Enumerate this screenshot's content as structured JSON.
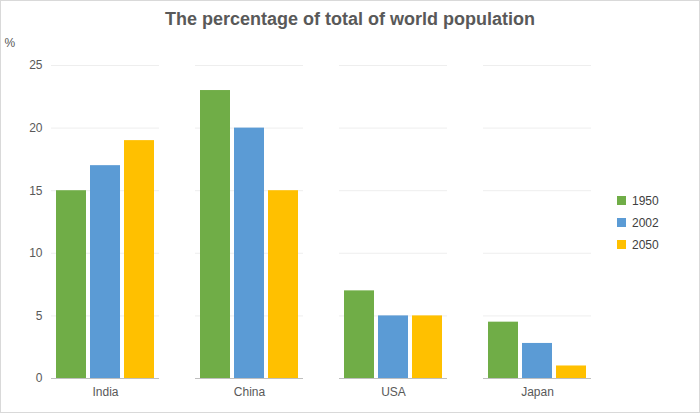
{
  "chart_data": {
    "type": "bar",
    "title": "The percentage of total of world population",
    "y_label": "%",
    "categories": [
      "India",
      "China",
      "USA",
      "Japan"
    ],
    "series": [
      {
        "name": "1950",
        "color": "#70ad47",
        "values": [
          15,
          23,
          7,
          4.5
        ]
      },
      {
        "name": "2002",
        "color": "#5b9bd5",
        "values": [
          17,
          20,
          5,
          2.8
        ]
      },
      {
        "name": "2050",
        "color": "#ffc000",
        "values": [
          19,
          15,
          5,
          1
        ]
      }
    ],
    "ylim": [
      0,
      25
    ],
    "yticks": [
      0,
      5,
      10,
      15,
      20,
      25
    ],
    "grid": true,
    "legend": "right"
  }
}
